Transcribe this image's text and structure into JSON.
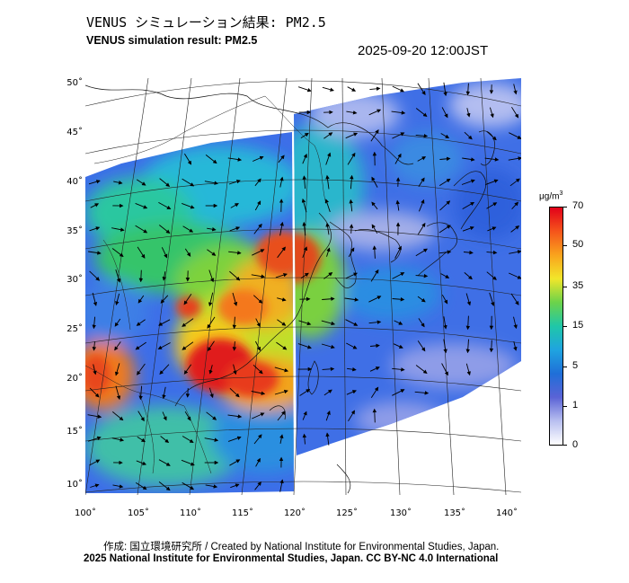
{
  "header": {
    "title_jp": "VENUS シミュレーション結果: PM2.5",
    "title_en": "VENUS simulation result: PM2.5",
    "datetime": "2025-09-20 12:00JST"
  },
  "map": {
    "lat_ticks": [
      "50˚",
      "45˚",
      "40˚",
      "35˚",
      "30˚",
      "25˚",
      "20˚",
      "15˚",
      "10˚"
    ],
    "lon_ticks": [
      "100˚",
      "105˚",
      "110˚",
      "115˚",
      "120˚",
      "125˚",
      "130˚",
      "135˚",
      "140˚"
    ],
    "lat_range": [
      9,
      51
    ],
    "lon_range": [
      100,
      141
    ]
  },
  "colorbar": {
    "unit": "μg/m",
    "unit_sup": "3",
    "ticks": [
      "70",
      "50",
      "35",
      "15",
      "5",
      "1",
      "0"
    ],
    "colors": [
      "#e2001a",
      "#f5541b",
      "#f9a31d",
      "#f2e62a",
      "#6cd34a",
      "#1fc7a8",
      "#1fa4e0",
      "#1f6fd8",
      "#5a63d6",
      "#b8bff0",
      "#ffffff"
    ]
  },
  "footer": {
    "credit": "作成: 国立環境研究所 / Created by National Institute for Environmental Studies, Japan.",
    "copyright": "2025 National Institute for Environmental Studies, Japan. CC BY-NC 4.0 International"
  }
}
